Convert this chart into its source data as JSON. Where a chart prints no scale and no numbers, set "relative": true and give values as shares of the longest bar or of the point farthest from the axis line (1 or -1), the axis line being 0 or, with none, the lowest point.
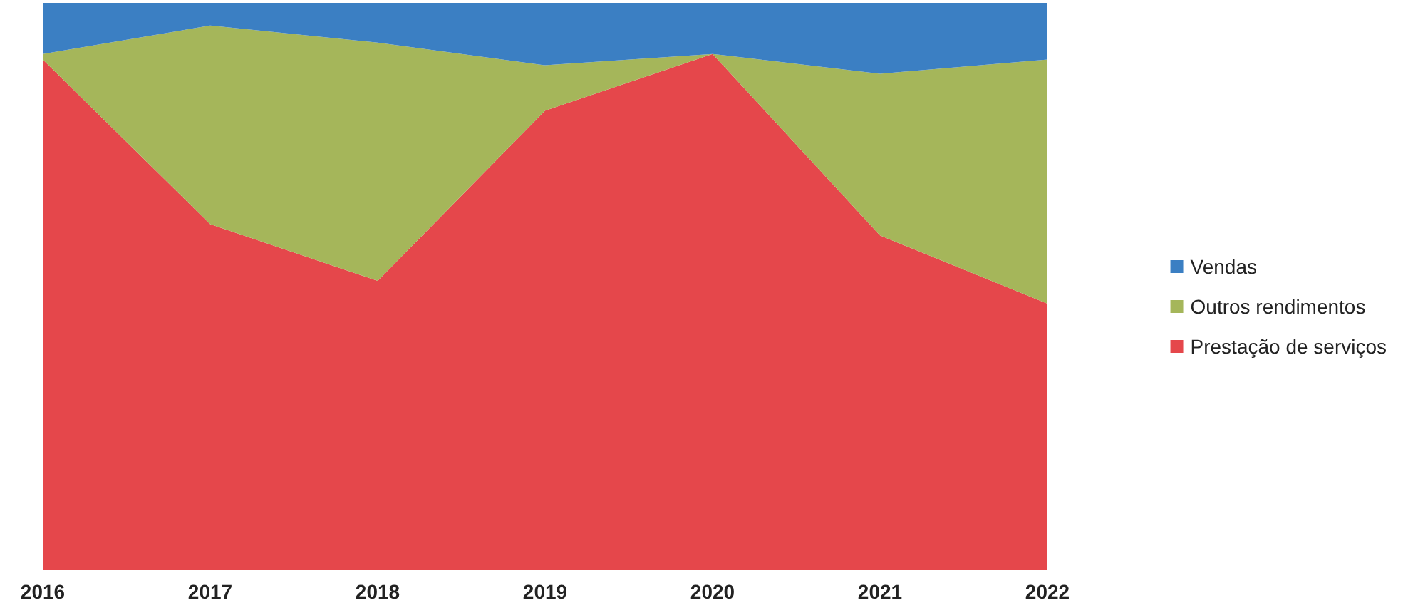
{
  "chart_data": {
    "type": "area",
    "relative": true,
    "stacked": true,
    "legend": "right",
    "categories": [
      "2016",
      "2017",
      "2018",
      "2019",
      "2020",
      "2021",
      "2022"
    ],
    "series": [
      {
        "name": "Prestação de serviços",
        "color": "#e5474b",
        "values": [
          0.9,
          0.61,
          0.51,
          0.81,
          0.91,
          0.59,
          0.47
        ]
      },
      {
        "name": "Outros rendimentos",
        "color": "#a5b65a",
        "values": [
          0.01,
          0.35,
          0.42,
          0.08,
          0,
          0.285,
          0.43
        ]
      },
      {
        "name": "Vendas",
        "color": "#3b7fc3",
        "values": [
          0.09,
          0.04,
          0.07,
          0.11,
          0.09,
          0.125,
          0.1
        ]
      }
    ]
  }
}
